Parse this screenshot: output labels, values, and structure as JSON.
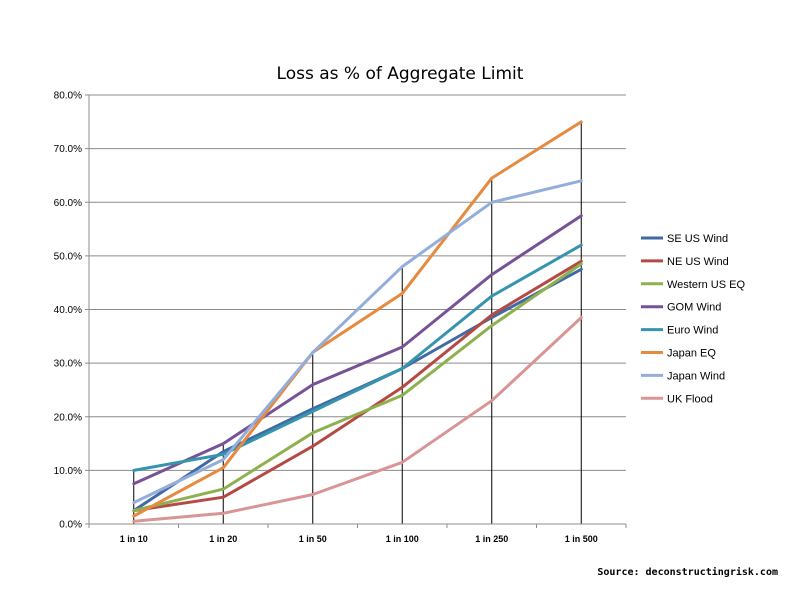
{
  "source_note": "Source: deconstructingrisk.com",
  "chart_data": {
    "type": "line",
    "title": "Loss as % of Aggregate Limit",
    "xlabel": "",
    "ylabel": "",
    "categories": [
      "1 in 10",
      "1 in 20",
      "1 in 50",
      "1 in 100",
      "1 in 250",
      "1 in 500"
    ],
    "ylim": [
      0,
      80
    ],
    "yticks": [
      0,
      10,
      20,
      30,
      40,
      50,
      60,
      70,
      80
    ],
    "ytick_labels": [
      "0.0%",
      "10.0%",
      "20.0%",
      "30.0%",
      "40.0%",
      "50.0%",
      "60.0%",
      "70.0%",
      "80.0%"
    ],
    "grid": "horizontal",
    "vertical_drop_lines": true,
    "legend_position": "right",
    "series": [
      {
        "name": "SE US Wind",
        "color": "#3f6aa6",
        "values": [
          2.5,
          13.5,
          21.5,
          29.0,
          38.5,
          47.5
        ]
      },
      {
        "name": "NE US Wind",
        "color": "#b54a45",
        "values": [
          2.5,
          5.0,
          14.5,
          25.5,
          39.0,
          49.0
        ]
      },
      {
        "name": "Western US EQ",
        "color": "#8fb04f",
        "values": [
          2.5,
          6.5,
          17.0,
          24.0,
          37.0,
          48.5
        ]
      },
      {
        "name": "GOM Wind",
        "color": "#775297",
        "values": [
          7.5,
          15.0,
          26.0,
          33.0,
          46.5,
          57.5
        ]
      },
      {
        "name": "Euro Wind",
        "color": "#3794ae",
        "values": [
          10.0,
          13.0,
          21.0,
          29.0,
          42.5,
          52.0
        ]
      },
      {
        "name": "Japan EQ",
        "color": "#e58a3e",
        "values": [
          1.5,
          10.5,
          32.0,
          43.0,
          64.5,
          75.0
        ]
      },
      {
        "name": "Japan Wind",
        "color": "#94aedb",
        "values": [
          4.0,
          12.0,
          32.0,
          48.0,
          60.0,
          64.0
        ]
      },
      {
        "name": "UK Flood",
        "color": "#d99595",
        "values": [
          0.5,
          2.0,
          5.5,
          11.5,
          23.0,
          38.5
        ]
      }
    ]
  }
}
